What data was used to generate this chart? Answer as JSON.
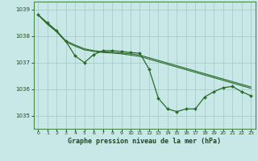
{
  "title": "Graphe pression niveau de la mer (hPa)",
  "bg_color": "#c8e8e8",
  "grid_color": "#a8cccc",
  "line_color": "#2a6b2a",
  "xlim": [
    -0.5,
    23.5
  ],
  "ylim": [
    1034.5,
    1039.3
  ],
  "yticks": [
    1035,
    1036,
    1037,
    1038,
    1039
  ],
  "xticks": [
    0,
    1,
    2,
    3,
    4,
    5,
    6,
    7,
    8,
    9,
    10,
    11,
    12,
    13,
    14,
    15,
    16,
    17,
    18,
    19,
    20,
    21,
    22,
    23
  ],
  "series_main": [
    1038.8,
    1038.5,
    1038.2,
    1037.8,
    1037.25,
    1037.0,
    1037.3,
    1037.45,
    1037.45,
    1037.42,
    1037.38,
    1037.35,
    1036.75,
    1035.65,
    1035.25,
    1035.15,
    1035.25,
    1035.25,
    1035.7,
    1035.9,
    1036.05,
    1036.1,
    1035.9,
    1035.75
  ],
  "series_trend1": [
    1038.8,
    1038.48,
    1038.18,
    1037.82,
    1037.66,
    1037.52,
    1037.45,
    1037.41,
    1037.39,
    1037.36,
    1037.33,
    1037.28,
    1037.18,
    1037.08,
    1036.98,
    1036.88,
    1036.78,
    1036.68,
    1036.58,
    1036.48,
    1036.38,
    1036.28,
    1036.18,
    1036.08
  ],
  "series_trend2": [
    1038.8,
    1038.44,
    1038.16,
    1037.78,
    1037.62,
    1037.48,
    1037.42,
    1037.38,
    1037.36,
    1037.33,
    1037.28,
    1037.23,
    1037.13,
    1037.03,
    1036.93,
    1036.83,
    1036.73,
    1036.63,
    1036.53,
    1036.43,
    1036.33,
    1036.23,
    1036.13,
    1036.03
  ]
}
